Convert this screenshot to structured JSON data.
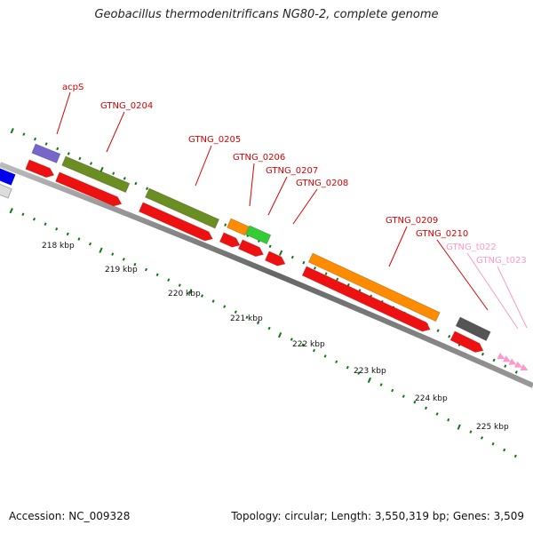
{
  "title": "Geobacillus thermodenitrificans NG80-2, complete genome",
  "footer": {
    "accession": "Accession: NC_009328",
    "stats": "Topology: circular; Length: 3,550,319 bp; Genes: 3,509"
  },
  "colors": {
    "cds_strand": "#ee1111",
    "label_red": "#dd0000",
    "trna": "#ff99cc",
    "tick_green": "#117711",
    "backbone": "#777777"
  },
  "kbp_labels": [
    "218 kbp",
    "219 kbp",
    "220 kbp",
    "221 kbp",
    "222 kbp",
    "223 kbp",
    "224 kbp",
    "225 kbp"
  ],
  "genes": [
    {
      "label": "acpS",
      "color": "#7766cc",
      "type": "gene"
    },
    {
      "label": "GTNG_0204",
      "color": "#6b8e23",
      "type": "gene"
    },
    {
      "label": "GTNG_0205",
      "color": "#6b8e23",
      "type": "gene"
    },
    {
      "label": "GTNG_0206",
      "color": "#ff8c00",
      "type": "gene"
    },
    {
      "label": "GTNG_0207",
      "color": "#33cc33",
      "type": "gene"
    },
    {
      "label": "GTNG_0208",
      "color": "#ee1111",
      "type": "gene"
    },
    {
      "label": "GTNG_0209",
      "color": "#ff8c00",
      "type": "gene"
    },
    {
      "label": "GTNG_0210",
      "color": "#555555",
      "type": "gene"
    },
    {
      "label": "GTNG_t022",
      "color": "#ff99cc",
      "type": "trna"
    },
    {
      "label": "GTNG_t023",
      "color": "#ff99cc",
      "type": "trna"
    }
  ]
}
